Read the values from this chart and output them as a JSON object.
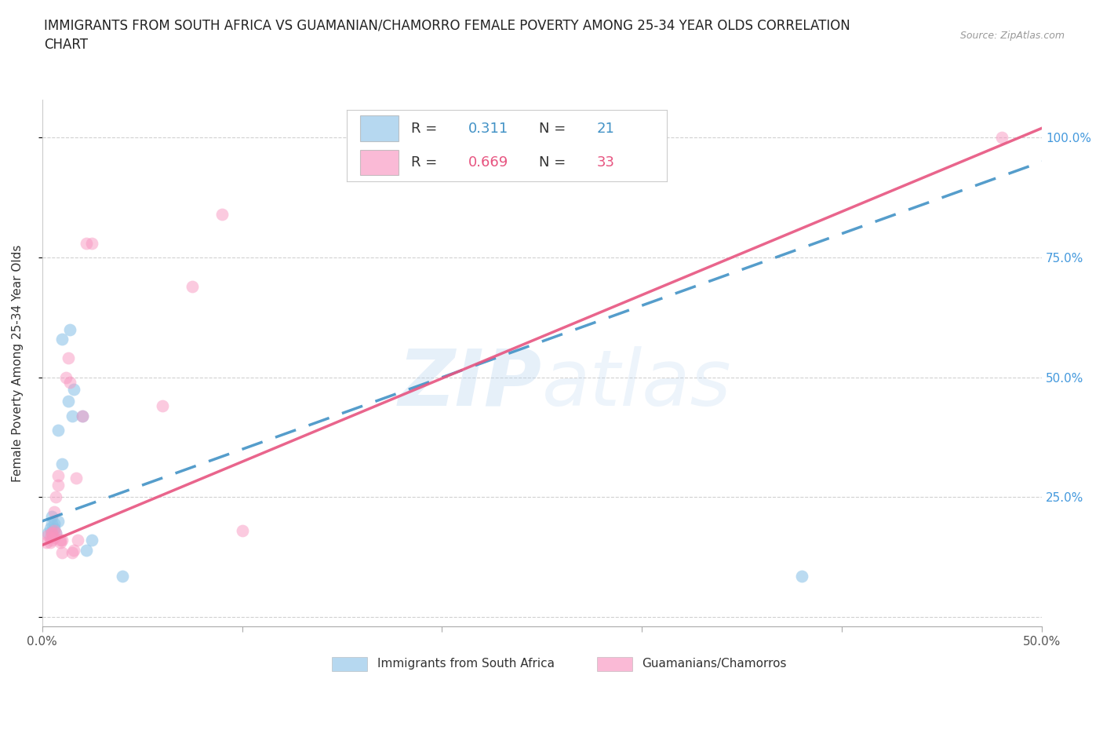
{
  "title": "IMMIGRANTS FROM SOUTH AFRICA VS GUAMANIAN/CHAMORRO FEMALE POVERTY AMONG 25-34 YEAR OLDS CORRELATION\nCHART",
  "source": "Source: ZipAtlas.com",
  "ylabel": "Female Poverty Among 25-34 Year Olds",
  "xlim": [
    0.0,
    0.5
  ],
  "ylim": [
    -0.02,
    1.08
  ],
  "yticks": [
    0.0,
    0.25,
    0.5,
    0.75,
    1.0
  ],
  "ytick_labels": [
    "",
    "25.0%",
    "50.0%",
    "75.0%",
    "100.0%"
  ],
  "xticks": [
    0.0,
    0.1,
    0.2,
    0.3,
    0.4,
    0.5
  ],
  "xtick_labels": [
    "0.0%",
    "",
    "",
    "",
    "",
    "50.0%"
  ],
  "background_color": "#ffffff",
  "watermark": "ZIPatlas",
  "blue_R": 0.311,
  "blue_N": 21,
  "pink_R": 0.669,
  "pink_N": 33,
  "blue_color": "#8fc4e8",
  "pink_color": "#f896c0",
  "blue_scatter": [
    [
      0.003,
      0.175
    ],
    [
      0.004,
      0.185
    ],
    [
      0.005,
      0.195
    ],
    [
      0.005,
      0.21
    ],
    [
      0.005,
      0.175
    ],
    [
      0.006,
      0.185
    ],
    [
      0.006,
      0.195
    ],
    [
      0.007,
      0.175
    ],
    [
      0.008,
      0.2
    ],
    [
      0.008,
      0.39
    ],
    [
      0.01,
      0.58
    ],
    [
      0.01,
      0.32
    ],
    [
      0.013,
      0.45
    ],
    [
      0.014,
      0.6
    ],
    [
      0.015,
      0.42
    ],
    [
      0.016,
      0.475
    ],
    [
      0.02,
      0.42
    ],
    [
      0.022,
      0.14
    ],
    [
      0.025,
      0.16
    ],
    [
      0.04,
      0.085
    ],
    [
      0.38,
      0.085
    ]
  ],
  "pink_scatter": [
    [
      0.002,
      0.155
    ],
    [
      0.003,
      0.17
    ],
    [
      0.004,
      0.165
    ],
    [
      0.004,
      0.155
    ],
    [
      0.005,
      0.16
    ],
    [
      0.005,
      0.175
    ],
    [
      0.005,
      0.175
    ],
    [
      0.006,
      0.165
    ],
    [
      0.006,
      0.18
    ],
    [
      0.006,
      0.22
    ],
    [
      0.007,
      0.175
    ],
    [
      0.007,
      0.25
    ],
    [
      0.008,
      0.275
    ],
    [
      0.008,
      0.295
    ],
    [
      0.009,
      0.16
    ],
    [
      0.009,
      0.155
    ],
    [
      0.01,
      0.16
    ],
    [
      0.01,
      0.135
    ],
    [
      0.012,
      0.5
    ],
    [
      0.013,
      0.54
    ],
    [
      0.014,
      0.49
    ],
    [
      0.015,
      0.135
    ],
    [
      0.016,
      0.14
    ],
    [
      0.017,
      0.29
    ],
    [
      0.018,
      0.16
    ],
    [
      0.02,
      0.42
    ],
    [
      0.022,
      0.78
    ],
    [
      0.025,
      0.78
    ],
    [
      0.06,
      0.44
    ],
    [
      0.075,
      0.69
    ],
    [
      0.09,
      0.84
    ],
    [
      0.1,
      0.18
    ],
    [
      0.48,
      1.0
    ]
  ],
  "blue_line_color": "#4292c6",
  "pink_line_color": "#e75480",
  "title_fontsize": 12,
  "axis_label_fontsize": 11,
  "tick_fontsize": 11,
  "legend_fontsize": 13,
  "right_tick_color": "#4499dd"
}
